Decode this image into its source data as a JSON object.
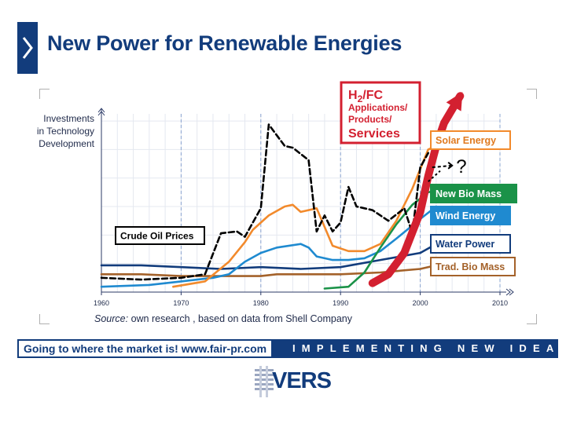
{
  "header": {
    "title": "New Power for Renewable Energies"
  },
  "chart_data": {
    "type": "line",
    "ylabel": [
      "Investments",
      "in Technology",
      "Development"
    ],
    "x_ticks": [
      1960,
      1970,
      1980,
      1990,
      2000,
      2010
    ],
    "xlim": [
      1960,
      2010
    ],
    "ylim": [
      0,
      100
    ],
    "grid": true,
    "series": [
      {
        "name": "Crude Oil Prices",
        "color": "#000000",
        "dashed": true,
        "points": [
          [
            1960,
            8
          ],
          [
            1965,
            7
          ],
          [
            1970,
            8
          ],
          [
            1973,
            10
          ],
          [
            1975,
            33
          ],
          [
            1977,
            34
          ],
          [
            1978,
            31
          ],
          [
            1980,
            47
          ],
          [
            1981,
            94
          ],
          [
            1983,
            82
          ],
          [
            1984,
            81
          ],
          [
            1986,
            74
          ],
          [
            1987,
            34
          ],
          [
            1988,
            43
          ],
          [
            1989,
            34
          ],
          [
            1990,
            39
          ],
          [
            1991,
            59
          ],
          [
            1992,
            48
          ],
          [
            1994,
            46
          ],
          [
            1996,
            40
          ],
          [
            1998,
            47
          ],
          [
            1999,
            33
          ],
          [
            2000,
            70
          ],
          [
            2001,
            78
          ]
        ]
      },
      {
        "name": "Solar Energy",
        "color": "#f28a2c",
        "points": [
          [
            1969,
            3
          ],
          [
            1973,
            6
          ],
          [
            1976,
            17
          ],
          [
            1978,
            28
          ],
          [
            1979,
            35
          ],
          [
            1981,
            43
          ],
          [
            1983,
            48
          ],
          [
            1984,
            49
          ],
          [
            1985,
            45
          ],
          [
            1987,
            47
          ],
          [
            1989,
            26
          ],
          [
            1991,
            23
          ],
          [
            1993,
            23
          ],
          [
            1995,
            27
          ],
          [
            1997,
            40
          ],
          [
            1999,
            58
          ],
          [
            2001,
            80
          ],
          [
            2002,
            82
          ]
        ]
      },
      {
        "name": "Wind Energy",
        "color": "#1f8ad0",
        "points": [
          [
            1960,
            3
          ],
          [
            1966,
            4
          ],
          [
            1970,
            6
          ],
          [
            1974,
            8
          ],
          [
            1976,
            10
          ],
          [
            1978,
            17
          ],
          [
            1980,
            22
          ],
          [
            1982,
            25
          ],
          [
            1985,
            27
          ],
          [
            1986,
            25
          ],
          [
            1987,
            20
          ],
          [
            1989,
            18
          ],
          [
            1991,
            18
          ],
          [
            1993,
            19
          ],
          [
            1995,
            23
          ],
          [
            1997,
            30
          ],
          [
            2000,
            41
          ],
          [
            2002,
            48
          ]
        ]
      },
      {
        "name": "New Bio Mass",
        "color": "#1a9248",
        "points": [
          [
            1988,
            2
          ],
          [
            1991,
            3
          ],
          [
            1993,
            11
          ],
          [
            1995,
            25
          ],
          [
            1997,
            38
          ],
          [
            1999,
            49
          ],
          [
            2001,
            56
          ],
          [
            2002,
            57
          ]
        ]
      },
      {
        "name": "Water Power",
        "color": "#123c7c",
        "points": [
          [
            1960,
            15
          ],
          [
            1965,
            15
          ],
          [
            1970,
            14
          ],
          [
            1975,
            13
          ],
          [
            1980,
            14
          ],
          [
            1985,
            13
          ],
          [
            1990,
            14
          ],
          [
            1995,
            18
          ],
          [
            2000,
            22
          ],
          [
            2002,
            27
          ]
        ]
      },
      {
        "name": "Trad. Bio Mass",
        "color": "#a4622a",
        "points": [
          [
            1960,
            10
          ],
          [
            1965,
            10
          ],
          [
            1970,
            9
          ],
          [
            1975,
            9
          ],
          [
            1980,
            9
          ],
          [
            1982,
            10
          ],
          [
            1985,
            10
          ],
          [
            1990,
            10
          ],
          [
            1995,
            11
          ],
          [
            2000,
            13
          ],
          [
            2002,
            15
          ]
        ]
      },
      {
        "name": "H2/FC Applications/Products/Services",
        "color": "#d32030",
        "thick": true,
        "points": [
          [
            1994,
            5
          ],
          [
            1996,
            10
          ],
          [
            1998,
            22
          ],
          [
            2000,
            45
          ],
          [
            2001,
            65
          ],
          [
            2002,
            82
          ],
          [
            2003,
            95
          ],
          [
            2005,
            110
          ]
        ]
      }
    ],
    "annotation": "?"
  },
  "labels": {
    "crude_oil": "Crude Oil Prices",
    "solar": "Solar Energy",
    "newbio": "New Bio Mass",
    "wind": "Wind Energy",
    "water": "Water Power",
    "tradbio": "Trad. Bio Mass",
    "h2_1": "H",
    "h2_sub": "2",
    "h2_2": "/FC",
    "h2_line2": "Applications/",
    "h2_line3": "Products/",
    "h2_line4": "Services",
    "question": "?"
  },
  "source": {
    "prefix": "Source:",
    "text": " own research , based on data from Shell Company"
  },
  "footer": {
    "left": "Going to where the market is!   www.fair-pr.com",
    "right": "IMPLEMENTING NEW IDEAS"
  },
  "logo": {
    "text": "VERS"
  }
}
